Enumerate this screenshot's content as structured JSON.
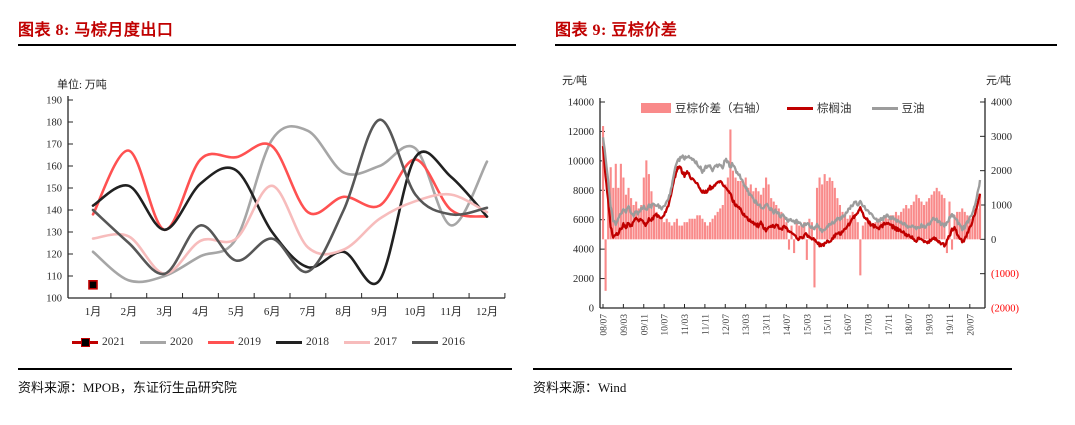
{
  "left_panel": {
    "title": "图表 8: 马棕月度出口",
    "unit_label": "单位: 万吨",
    "source": "资料来源：MPOB，东证衍生品研究院"
  },
  "right_panel": {
    "title": "图表 9: 豆棕价差",
    "left_axis_unit": "元/吨",
    "right_axis_unit": "元/吨",
    "source": "资料来源：Wind"
  },
  "chart_data": [
    {
      "type": "line",
      "title": "图表 8: 马棕月度出口",
      "ylabel": "单位: 万吨",
      "ylim": [
        100,
        190
      ],
      "ytick_step": 10,
      "grid": false,
      "legend_position": "bottom",
      "categories": [
        "1月",
        "2月",
        "3月",
        "4月",
        "5月",
        "6月",
        "7月",
        "8月",
        "9月",
        "10月",
        "11月",
        "12月"
      ],
      "series": [
        {
          "name": "2021",
          "color": "#C00000",
          "marker": "square",
          "values": [
            106,
            null,
            null,
            null,
            null,
            null,
            null,
            null,
            null,
            null,
            null,
            null
          ]
        },
        {
          "name": "2020",
          "color": "#A6A6A6",
          "values": [
            121,
            108,
            110,
            119,
            127,
            172,
            176,
            157,
            160,
            168,
            133,
            162
          ]
        },
        {
          "name": "2019",
          "color": "#FF5151",
          "values": [
            138,
            167,
            131,
            163,
            164,
            169,
            139,
            146,
            142,
            163,
            140,
            137
          ]
        },
        {
          "name": "2018",
          "color": "#212121",
          "values": [
            142,
            151,
            131,
            152,
            158,
            130,
            114,
            121,
            108,
            164,
            155,
            137
          ]
        },
        {
          "name": "2017",
          "color": "#F7BCBC",
          "values": [
            127,
            128,
            111,
            126,
            127,
            151,
            123,
            122,
            136,
            144,
            147,
            139
          ]
        },
        {
          "name": "2016",
          "color": "#575757",
          "values": [
            140,
            125,
            111,
            133,
            117,
            127,
            112,
            140,
            181,
            147,
            138,
            141
          ]
        }
      ]
    },
    {
      "type": "combo",
      "title": "图表 9: 豆棕价差",
      "left_axis": {
        "label": "元/吨",
        "min": 0,
        "max": 14000,
        "step": 2000
      },
      "right_axis": {
        "label": "元/吨",
        "min": -2000,
        "max": 4000,
        "step": 1000,
        "negative_format": "parentheses_red"
      },
      "x_monthly_start": "2008-07",
      "x_labels": [
        "08/07",
        "09/03",
        "09/11",
        "10/07",
        "11/03",
        "11/11",
        "12/07",
        "13/03",
        "13/11",
        "14/07",
        "15/03",
        "15/11",
        "16/07",
        "17/03",
        "17/11",
        "18/07",
        "19/03",
        "19/11",
        "20/07"
      ],
      "x_label_every_n_months": 8,
      "noise_amp_line": 120,
      "series": [
        {
          "name": "豆棕价差（右轴）",
          "type": "bar",
          "axis": "right",
          "color": "#F98A8A",
          "values": [
            3300,
            -1500,
            1400,
            2100,
            1500,
            2200,
            1500,
            2200,
            1800,
            1300,
            1500,
            1200,
            1000,
            1100,
            900,
            1000,
            1800,
            2300,
            1900,
            1400,
            1000,
            800,
            700,
            600,
            500,
            600,
            500,
            400,
            500,
            600,
            400,
            400,
            500,
            500,
            600,
            600,
            600,
            700,
            700,
            600,
            500,
            400,
            500,
            600,
            700,
            800,
            900,
            1000,
            1600,
            1800,
            3200,
            2000,
            1800,
            1700,
            1700,
            1600,
            1800,
            1500,
            1600,
            1400,
            1500,
            1400,
            1300,
            1500,
            1800,
            1600,
            1200,
            1100,
            1000,
            900,
            800,
            700,
            500,
            -300,
            400,
            -400,
            500,
            400,
            400,
            500,
            -600,
            600,
            500,
            -1400,
            1500,
            1800,
            1600,
            1900,
            1700,
            1800,
            1700,
            1500,
            1200,
            1000,
            800,
            700,
            600,
            700,
            800,
            600,
            500,
            -1050,
            400,
            500,
            600,
            500,
            400,
            500,
            600,
            500,
            600,
            700,
            600,
            700,
            700,
            800,
            700,
            800,
            900,
            1000,
            900,
            1000,
            1100,
            1300,
            1200,
            1100,
            1000,
            1100,
            1200,
            1300,
            1400,
            1500,
            1400,
            1300,
            1200,
            -400,
            1100,
            -300,
            700,
            800,
            800,
            900,
            800,
            700,
            600,
            600,
            700,
            900,
            1300
          ]
        },
        {
          "name": "棕榈油",
          "type": "line",
          "axis": "left",
          "color": "#C00000",
          "values": [
            11000,
            9000,
            7400,
            5600,
            4800,
            4900,
            5100,
            5400,
            5700,
            5500,
            5800,
            5600,
            5900,
            6100,
            5900,
            6100,
            5800,
            5600,
            6100,
            6000,
            6200,
            6300,
            6200,
            6100,
            6300,
            6700,
            7200,
            7900,
            8800,
            9400,
            9600,
            9300,
            9000,
            9200,
            9000,
            8800,
            8600,
            8400,
            8200,
            7900,
            7800,
            8000,
            8200,
            8100,
            8300,
            8500,
            8600,
            8400,
            8300,
            8000,
            7700,
            7300,
            7000,
            6800,
            6700,
            6400,
            6200,
            6000,
            5900,
            5800,
            5700,
            5600,
            5800,
            5500,
            5300,
            5400,
            5600,
            5500,
            5600,
            5500,
            5400,
            5500,
            5400,
            5200,
            5100,
            4900,
            4800,
            4700,
            4800,
            4900,
            5000,
            4800,
            4700,
            4600,
            4500,
            4300,
            4200,
            4400,
            4600,
            4500,
            4700,
            4900,
            5100,
            5000,
            5200,
            5400,
            5600,
            5800,
            6100,
            6300,
            6500,
            6800,
            6400,
            6100,
            5900,
            5700,
            5600,
            5500,
            5400,
            5500,
            5600,
            5800,
            5700,
            5600,
            5500,
            5400,
            5300,
            5200,
            5100,
            5000,
            4900,
            4800,
            4700,
            4600,
            4700,
            4600,
            4500,
            4400,
            4500,
            4600,
            4700,
            4600,
            4500,
            4400,
            4300,
            4500,
            4900,
            5300,
            5500,
            5100,
            4800,
            4500,
            4700,
            5100,
            5500,
            5900,
            6400,
            7000,
            7700
          ]
        },
        {
          "name": "豆油",
          "type": "line",
          "axis": "left",
          "color": "#9C9C9C",
          "values": [
            11600,
            10200,
            8800,
            7000,
            5900,
            5700,
            6000,
            6400,
            6800,
            6600,
            6900,
            6500,
            6300,
            6600,
            6400,
            6700,
            6900,
            6700,
            7000,
            6900,
            7100,
            7000,
            6900,
            6800,
            6900,
            7200,
            7600,
            8300,
            9200,
            9900,
            10100,
            10300,
            10200,
            10300,
            10200,
            10100,
            10000,
            9800,
            9600,
            9300,
            9500,
            9700,
            9600,
            9400,
            9600,
            9700,
            9800,
            9600,
            10100,
            9900,
            9600,
            9800,
            9400,
            9100,
            8900,
            8500,
            8200,
            7900,
            7600,
            7400,
            7200,
            7000,
            6900,
            6800,
            7000,
            6900,
            6700,
            6500,
            6600,
            6400,
            6200,
            6300,
            6100,
            5900,
            6000,
            5800,
            5900,
            5800,
            5700,
            5600,
            5800,
            5600,
            5500,
            5400,
            5600,
            5400,
            5200,
            5300,
            5500,
            5700,
            5800,
            5900,
            6100,
            6000,
            6200,
            6400,
            6600,
            6800,
            7000,
            7200,
            7000,
            7300,
            7000,
            6800,
            6600,
            6400,
            6200,
            6000,
            5900,
            6000,
            6100,
            6300,
            6200,
            6100,
            6100,
            6000,
            5900,
            5800,
            5700,
            5600,
            5500,
            5600,
            5500,
            5400,
            5500,
            5600,
            5500,
            5600,
            5700,
            5900,
            6100,
            6000,
            5800,
            5700,
            5600,
            5800,
            6100,
            6300,
            6200,
            5900,
            5600,
            5400,
            5500,
            5800,
            6100,
            6500,
            7000,
            7800,
            8600
          ]
        }
      ]
    }
  ]
}
